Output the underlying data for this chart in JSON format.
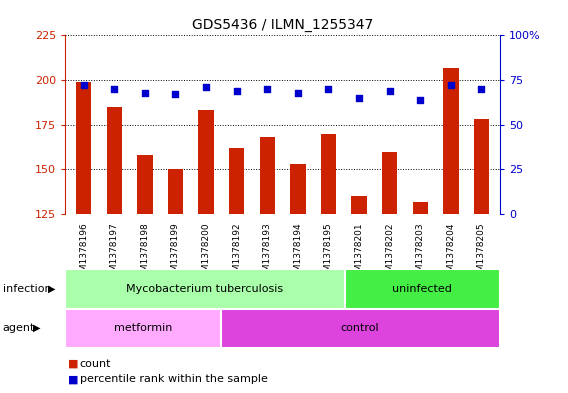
{
  "title": "GDS5436 / ILMN_1255347",
  "samples": [
    "GSM1378196",
    "GSM1378197",
    "GSM1378198",
    "GSM1378199",
    "GSM1378200",
    "GSM1378192",
    "GSM1378193",
    "GSM1378194",
    "GSM1378195",
    "GSM1378201",
    "GSM1378202",
    "GSM1378203",
    "GSM1378204",
    "GSM1378205"
  ],
  "counts": [
    199,
    185,
    158,
    150,
    183,
    162,
    168,
    153,
    170,
    135,
    160,
    132,
    207,
    178
  ],
  "percentile_ranks": [
    72,
    70,
    68,
    67,
    71,
    69,
    70,
    68,
    70,
    65,
    69,
    64,
    72,
    70
  ],
  "ylim_left": [
    125,
    225
  ],
  "yticks_left": [
    125,
    150,
    175,
    200,
    225
  ],
  "ylim_right": [
    0,
    100
  ],
  "yticks_right": [
    0,
    25,
    50,
    75,
    100
  ],
  "bar_color": "#cc2200",
  "dot_color": "#0000cc",
  "infection_groups": [
    {
      "label": "Mycobacterium tuberculosis",
      "start": 0,
      "end": 9,
      "color": "#aaffaa"
    },
    {
      "label": "uninfected",
      "start": 9,
      "end": 14,
      "color": "#44ee44"
    }
  ],
  "agent_groups": [
    {
      "label": "metformin",
      "start": 0,
      "end": 5,
      "color": "#ffaaff"
    },
    {
      "label": "control",
      "start": 5,
      "end": 14,
      "color": "#dd44dd"
    }
  ],
  "infection_label": "infection",
  "agent_label": "agent",
  "legend_count_label": "count",
  "legend_percentile_label": "percentile rank within the sample",
  "bar_width": 0.5,
  "xticklabel_bg": "#d0d0d0",
  "plot_bg_color": "#ffffff"
}
